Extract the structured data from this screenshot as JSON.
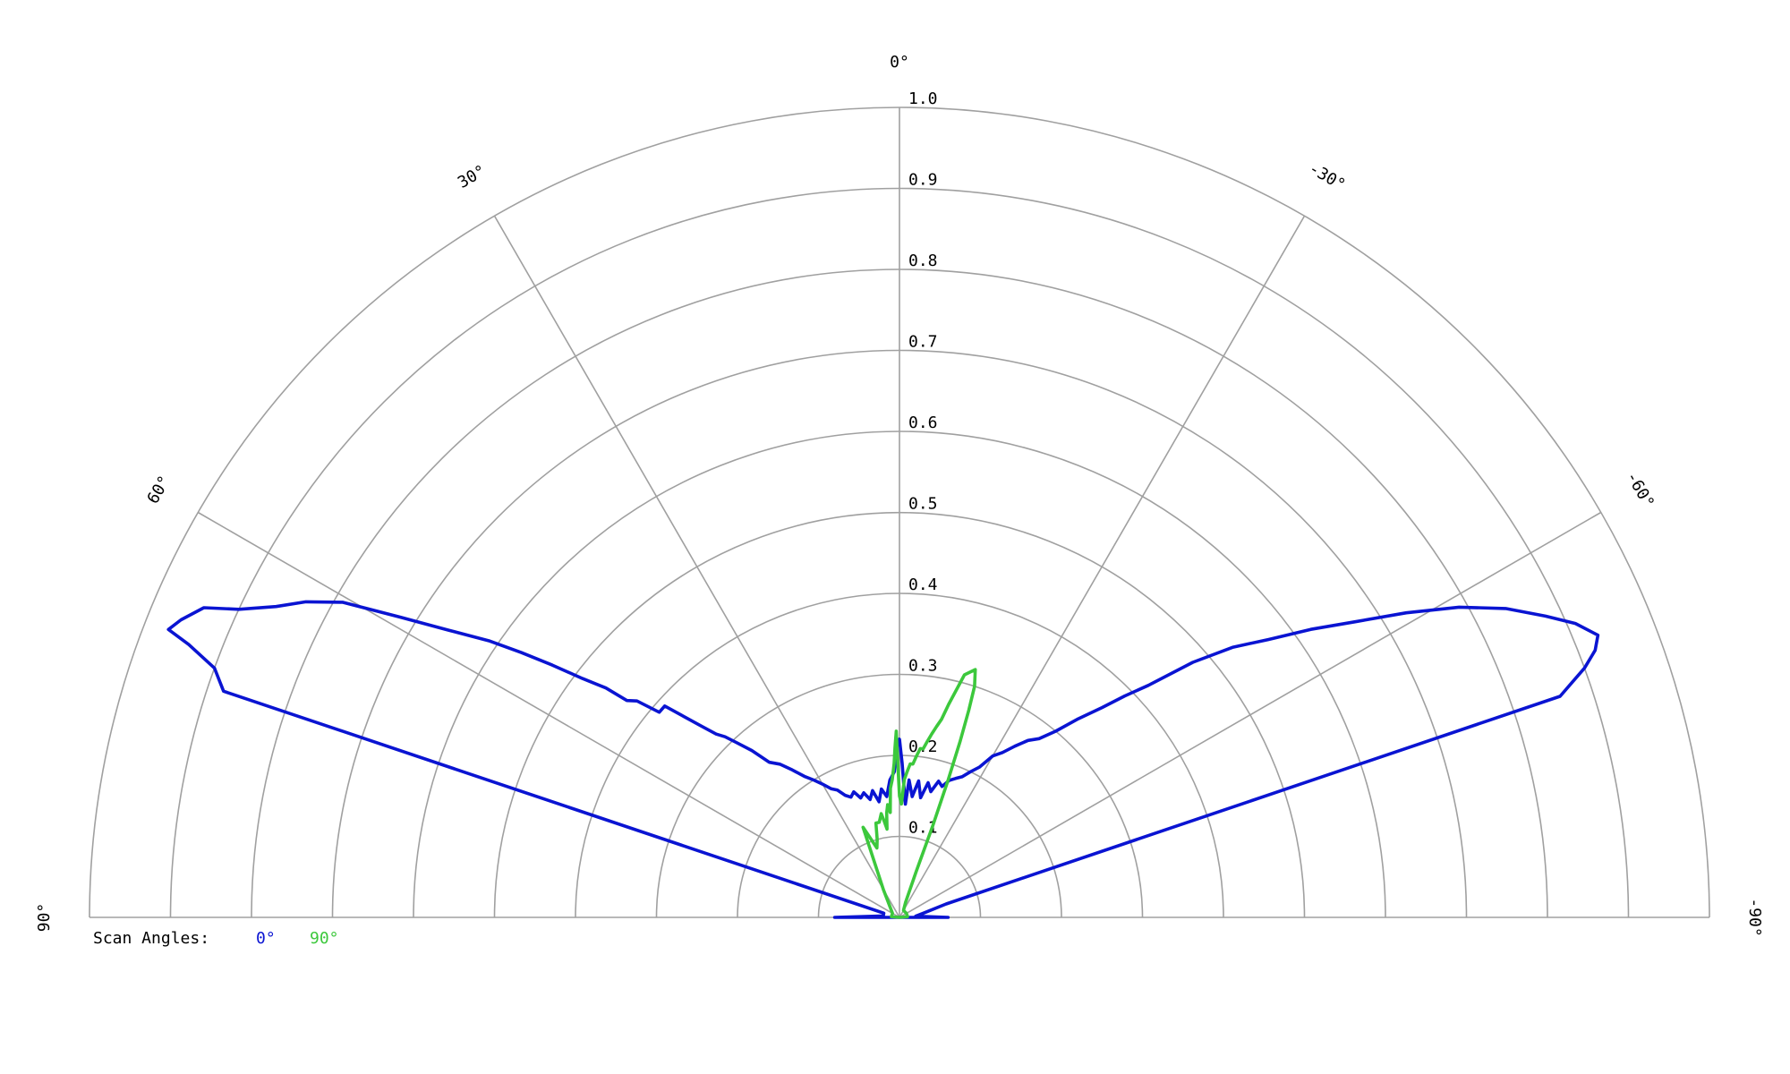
{
  "chart_data": {
    "type": "polar-line",
    "angle_unit": "deg",
    "angle_range": [
      -90,
      90
    ],
    "radial_range": [
      0,
      1.0
    ],
    "radial_ticks": [
      "0.1",
      "0.2",
      "0.3",
      "0.4",
      "0.5",
      "0.6",
      "0.7",
      "0.8",
      "0.9",
      "1.0"
    ],
    "angle_ticks": [
      {
        "angle": 90,
        "label": "90°"
      },
      {
        "angle": 60,
        "label": "60°"
      },
      {
        "angle": 30,
        "label": "30°"
      },
      {
        "angle": 0,
        "label": "0°"
      },
      {
        "angle": -30,
        "label": "-30°"
      },
      {
        "angle": -60,
        "label": "-60°"
      },
      {
        "angle": -90,
        "label": "-90°"
      }
    ],
    "grid": true,
    "legend": {
      "title": "Scan Angles:",
      "placement": "bottom-left",
      "items": [
        {
          "label": "0°",
          "color": "#0a14d2"
        },
        {
          "label": "90°",
          "color": "#3cc83c"
        }
      ]
    },
    "series": [
      {
        "name": "0°",
        "color": "#0a14d2",
        "points": [
          [
            90,
            0.08
          ],
          [
            85,
            0.02
          ],
          [
            80,
            0.02
          ],
          [
            75,
            0.02
          ],
          [
            71.5,
            0.88
          ],
          [
            70,
            0.9
          ],
          [
            69,
            0.94
          ],
          [
            68.5,
            0.97
          ],
          [
            67.5,
            0.96
          ],
          [
            66,
            0.94
          ],
          [
            65,
            0.9
          ],
          [
            63.5,
            0.86
          ],
          [
            62,
            0.83
          ],
          [
            60.5,
            0.79
          ],
          [
            59,
            0.72
          ],
          [
            57.5,
            0.66
          ],
          [
            56,
            0.61
          ],
          [
            55,
            0.57
          ],
          [
            54,
            0.53
          ],
          [
            53,
            0.49
          ],
          [
            52,
            0.46
          ],
          [
            51.5,
            0.43
          ],
          [
            50.5,
            0.42
          ],
          [
            49.5,
            0.39
          ],
          [
            48,
            0.39
          ],
          [
            46,
            0.34
          ],
          [
            45,
            0.32
          ],
          [
            44,
            0.31
          ],
          [
            43,
            0.295
          ],
          [
            41.5,
            0.275
          ],
          [
            40,
            0.25
          ],
          [
            38,
            0.24
          ],
          [
            36,
            0.225
          ],
          [
            34,
            0.21
          ],
          [
            32,
            0.2
          ],
          [
            30,
            0.19
          ],
          [
            28,
            0.18
          ],
          [
            26,
            0.175
          ],
          [
            24,
            0.165
          ],
          [
            22,
            0.16
          ],
          [
            20,
            0.165
          ],
          [
            18,
            0.155
          ],
          [
            16,
            0.16
          ],
          [
            14,
            0.15
          ],
          [
            12,
            0.16
          ],
          [
            10,
            0.145
          ],
          [
            8,
            0.16
          ],
          [
            6,
            0.15
          ],
          [
            4,
            0.17
          ],
          [
            2,
            0.18
          ],
          [
            1,
            0.21
          ],
          [
            0,
            0.22
          ],
          [
            -1,
            0.19
          ],
          [
            -2,
            0.16
          ],
          [
            -3,
            0.14
          ],
          [
            -4,
            0.17
          ],
          [
            -6,
            0.15
          ],
          [
            -8,
            0.17
          ],
          [
            -10,
            0.15
          ],
          [
            -12,
            0.17
          ],
          [
            -14,
            0.16
          ],
          [
            -16,
            0.175
          ],
          [
            -18,
            0.17
          ],
          [
            -20,
            0.18
          ],
          [
            -22,
            0.185
          ],
          [
            -24,
            0.19
          ],
          [
            -26,
            0.2
          ],
          [
            -28,
            0.21
          ],
          [
            -30,
            0.23
          ],
          [
            -32,
            0.24
          ],
          [
            -34,
            0.255
          ],
          [
            -36,
            0.27
          ],
          [
            -38,
            0.28
          ],
          [
            -40,
            0.3
          ],
          [
            -42,
            0.33
          ],
          [
            -44,
            0.36
          ],
          [
            -45.5,
            0.39
          ],
          [
            -47,
            0.42
          ],
          [
            -49,
            0.48
          ],
          [
            -51,
            0.53
          ],
          [
            -53,
            0.57
          ],
          [
            -55,
            0.62
          ],
          [
            -57,
            0.67
          ],
          [
            -59,
            0.73
          ],
          [
            -61,
            0.79
          ],
          [
            -63,
            0.84
          ],
          [
            -65,
            0.88
          ],
          [
            -66.5,
            0.91
          ],
          [
            -68,
            0.93
          ],
          [
            -69,
            0.92
          ],
          [
            -70,
            0.9
          ],
          [
            -71.5,
            0.86
          ],
          [
            -74,
            0.06
          ],
          [
            -80,
            0.03
          ],
          [
            -86,
            0.02
          ],
          [
            -90,
            0.06
          ]
        ]
      },
      {
        "name": "90°",
        "color": "#3cc83c",
        "points": [
          [
            85,
            0.01
          ],
          [
            60,
            0.01
          ],
          [
            30,
            0.04
          ],
          [
            22,
            0.12
          ],
          [
            18,
            0.09
          ],
          [
            16,
            0.1
          ],
          [
            14,
            0.12
          ],
          [
            12,
            0.12
          ],
          [
            10,
            0.13
          ],
          [
            9,
            0.12
          ],
          [
            8,
            0.11
          ],
          [
            7,
            0.13
          ],
          [
            6,
            0.14
          ],
          [
            5,
            0.13
          ],
          [
            4,
            0.16
          ],
          [
            3,
            0.17
          ],
          [
            2,
            0.19
          ],
          [
            1.5,
            0.21
          ],
          [
            1,
            0.23
          ],
          [
            0.5,
            0.18
          ],
          [
            0,
            0.15
          ],
          [
            -1,
            0.14
          ],
          [
            -2,
            0.17
          ],
          [
            -3,
            0.18
          ],
          [
            -4,
            0.19
          ],
          [
            -5,
            0.19
          ],
          [
            -6,
            0.2
          ],
          [
            -7,
            0.21
          ],
          [
            -8,
            0.21
          ],
          [
            -9,
            0.22
          ],
          [
            -10,
            0.23
          ],
          [
            -11,
            0.24
          ],
          [
            -12,
            0.25
          ],
          [
            -13,
            0.27
          ],
          [
            -15,
            0.31
          ],
          [
            -17,
            0.32
          ],
          [
            -18,
            0.3
          ],
          [
            -18.5,
            0.27
          ],
          [
            -19,
            0.23
          ],
          [
            -19.5,
            0.18
          ],
          [
            -20,
            0.12
          ],
          [
            -20,
            0.06
          ],
          [
            -22,
            0.02
          ],
          [
            -30,
            0.01
          ],
          [
            -60,
            0.01
          ],
          [
            -85,
            0.01
          ]
        ]
      }
    ]
  }
}
